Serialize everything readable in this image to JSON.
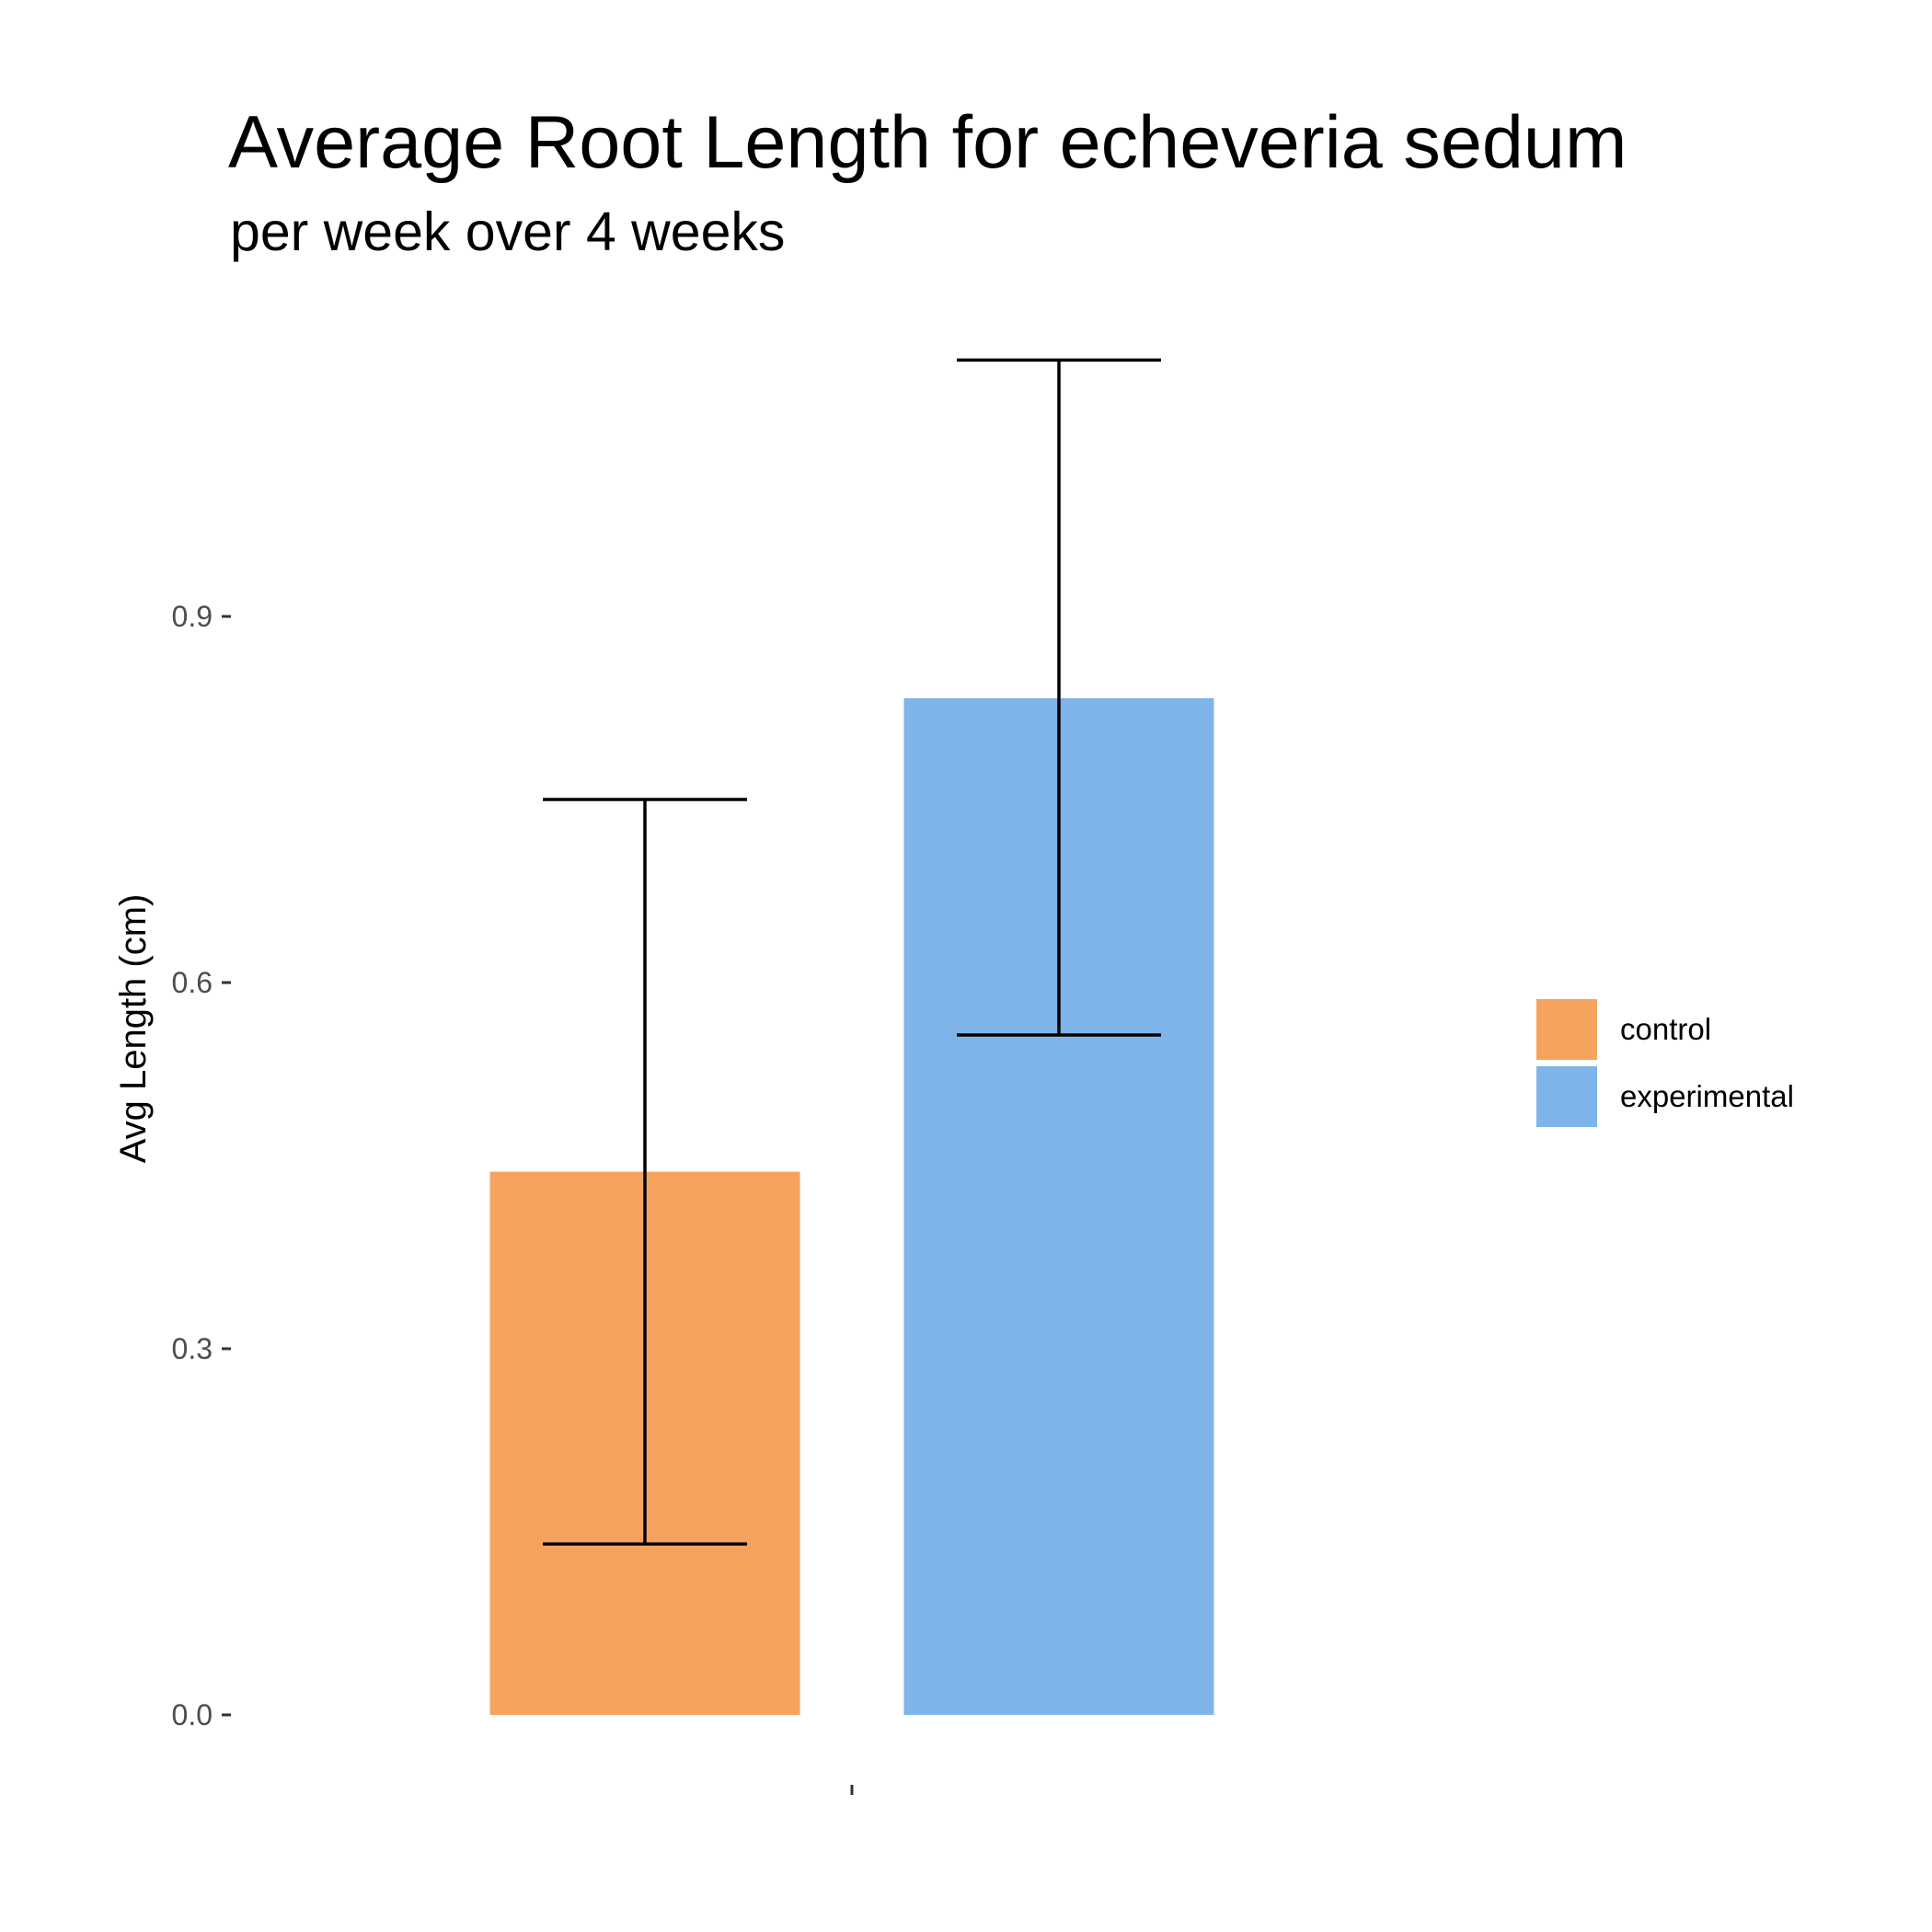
{
  "chart_data": {
    "type": "bar",
    "title": "Average Root Length for echeveria sedum",
    "subtitle": "per week over 4 weeks",
    "xlabel": "",
    "ylabel": "Avg Length (cm)",
    "ylim": [
      0,
      1.17
    ],
    "yticks": [
      0.0,
      0.3,
      0.6,
      0.9
    ],
    "ytick_labels": [
      "0.0",
      "0.3",
      "0.6",
      "0.9"
    ],
    "categories": [
      ""
    ],
    "grid": false,
    "legend_position": "right",
    "series": [
      {
        "name": "control",
        "values": [
          0.445
        ],
        "error_low": [
          0.14
        ],
        "error_high": [
          0.75
        ],
        "color": "#F5A35F"
      },
      {
        "name": "experimental",
        "values": [
          0.833
        ],
        "error_low": [
          0.557
        ],
        "error_high": [
          1.11
        ],
        "color": "#7EB4EA"
      }
    ]
  }
}
